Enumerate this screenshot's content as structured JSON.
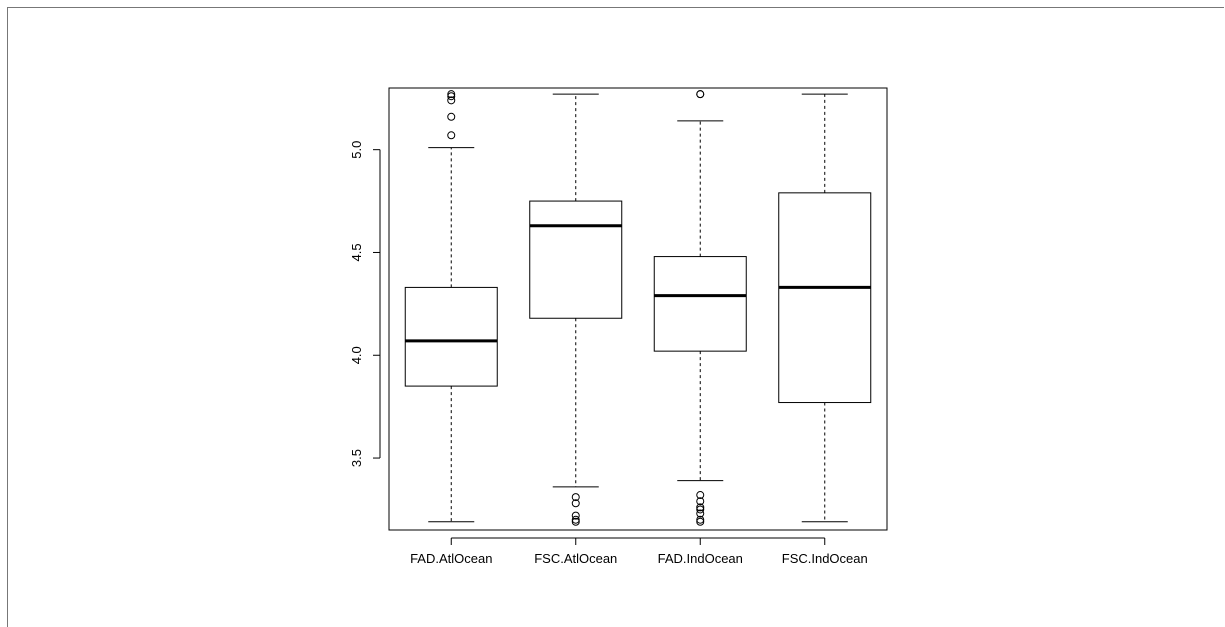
{
  "chart_data": {
    "type": "boxplot",
    "title": "",
    "xlabel": "",
    "ylabel": "",
    "ylim": [
      3.15,
      5.3
    ],
    "y_ticks": [
      3.5,
      4.0,
      4.5,
      5.0
    ],
    "y_tick_labels": [
      "3.5",
      "4.0",
      "4.5",
      "5.0"
    ],
    "categories": [
      "FAD.AtlOcean",
      "FSC.AtlOcean",
      "FAD.IndOcean",
      "FSC.IndOcean"
    ],
    "boxes": [
      {
        "name": "FAD.AtlOcean",
        "whisker_low": 3.19,
        "q1": 3.85,
        "median": 4.07,
        "q3": 4.33,
        "whisker_high": 5.01,
        "outliers": [
          5.07,
          5.16,
          5.24,
          5.26,
          5.27
        ]
      },
      {
        "name": "FSC.AtlOcean",
        "whisker_low": 3.36,
        "q1": 4.18,
        "median": 4.63,
        "q3": 4.75,
        "whisker_high": 5.27,
        "outliers": [
          3.19,
          3.2,
          3.22,
          3.28,
          3.31
        ]
      },
      {
        "name": "FAD.IndOcean",
        "whisker_low": 3.39,
        "q1": 4.02,
        "median": 4.29,
        "q3": 4.48,
        "whisker_high": 5.14,
        "outliers": [
          5.27,
          5.27,
          3.19,
          3.2,
          3.23,
          3.25,
          3.26,
          3.29,
          3.32
        ]
      },
      {
        "name": "FSC.IndOcean",
        "whisker_low": 3.19,
        "q1": 3.77,
        "median": 4.33,
        "q3": 4.79,
        "whisker_high": 5.27,
        "outliers": []
      }
    ],
    "grid": false,
    "legend": "none"
  }
}
